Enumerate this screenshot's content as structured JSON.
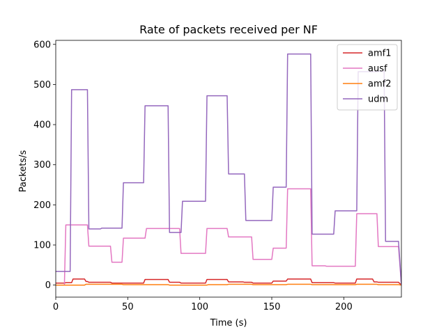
{
  "chart_data": {
    "type": "line",
    "title": "Rate of packets received per NF",
    "xlabel": "Time (s)",
    "ylabel": "Packets/s",
    "xlim": [
      0,
      240
    ],
    "ylim": [
      -30,
      610
    ],
    "xticks": [
      0,
      50,
      100,
      150,
      200
    ],
    "yticks": [
      0,
      100,
      200,
      300,
      400,
      500,
      600
    ],
    "grid": false,
    "legend_position": "top-right",
    "series": [
      {
        "name": "amf1",
        "color": "#d62728",
        "points": [
          [
            0,
            5
          ],
          [
            6,
            5
          ],
          [
            7,
            6
          ],
          [
            11,
            6
          ],
          [
            12,
            15
          ],
          [
            20,
            15
          ],
          [
            21,
            9
          ],
          [
            22,
            9
          ],
          [
            23,
            7
          ],
          [
            38,
            7
          ],
          [
            39,
            5
          ],
          [
            46,
            5
          ],
          [
            47,
            5
          ],
          [
            61,
            5
          ],
          [
            62,
            14
          ],
          [
            78,
            14
          ],
          [
            79,
            7
          ],
          [
            86,
            7
          ],
          [
            87,
            5
          ],
          [
            104,
            5
          ],
          [
            105,
            14
          ],
          [
            119,
            14
          ],
          [
            120,
            8
          ],
          [
            130,
            8
          ],
          [
            131,
            7
          ],
          [
            136,
            7
          ],
          [
            137,
            5
          ],
          [
            150,
            5
          ],
          [
            151,
            10
          ],
          [
            160,
            10
          ],
          [
            161,
            15
          ],
          [
            177,
            15
          ],
          [
            178,
            6
          ],
          [
            193,
            6
          ],
          [
            194,
            5
          ],
          [
            208,
            5
          ],
          [
            209,
            15
          ],
          [
            220,
            15
          ],
          [
            221,
            8
          ],
          [
            223,
            8
          ],
          [
            224,
            7
          ],
          [
            238,
            7
          ],
          [
            240,
            0
          ]
        ]
      },
      {
        "name": "ausf",
        "color": "#e377c2",
        "points": [
          [
            0,
            0
          ],
          [
            6,
            0
          ],
          [
            7,
            150
          ],
          [
            22,
            150
          ],
          [
            23,
            97
          ],
          [
            38,
            97
          ],
          [
            39,
            57
          ],
          [
            46,
            57
          ],
          [
            47,
            117
          ],
          [
            61,
            117
          ],
          [
            62,
            117
          ],
          [
            63,
            141
          ],
          [
            78,
            141
          ],
          [
            79,
            141
          ],
          [
            86,
            141
          ],
          [
            87,
            79
          ],
          [
            104,
            79
          ],
          [
            105,
            141
          ],
          [
            119,
            141
          ],
          [
            120,
            120
          ],
          [
            130,
            120
          ],
          [
            131,
            120
          ],
          [
            136,
            120
          ],
          [
            137,
            64
          ],
          [
            150,
            64
          ],
          [
            151,
            92
          ],
          [
            160,
            92
          ],
          [
            161,
            240
          ],
          [
            177,
            240
          ],
          [
            178,
            48
          ],
          [
            187,
            48
          ],
          [
            188,
            47
          ],
          [
            208,
            47
          ],
          [
            209,
            178
          ],
          [
            223,
            178
          ],
          [
            224,
            96
          ],
          [
            238,
            96
          ],
          [
            240,
            0
          ]
        ]
      },
      {
        "name": "amf2",
        "color": "#ff7f0e",
        "points": [
          [
            0,
            0
          ],
          [
            20,
            0
          ],
          [
            21,
            2
          ],
          [
            46,
            2
          ],
          [
            47,
            1
          ],
          [
            78,
            1
          ],
          [
            79,
            0
          ],
          [
            100,
            0
          ],
          [
            105,
            0
          ],
          [
            106,
            1
          ],
          [
            119,
            1
          ],
          [
            120,
            2
          ],
          [
            136,
            2
          ],
          [
            137,
            1
          ],
          [
            160,
            1
          ],
          [
            161,
            2
          ],
          [
            177,
            2
          ],
          [
            178,
            1
          ],
          [
            208,
            1
          ],
          [
            209,
            2
          ],
          [
            223,
            2
          ],
          [
            224,
            1
          ],
          [
            238,
            1
          ],
          [
            240,
            0
          ]
        ]
      },
      {
        "name": "udm",
        "color": "#9467bd",
        "points": [
          [
            0,
            34
          ],
          [
            10,
            34
          ],
          [
            11,
            487
          ],
          [
            22,
            487
          ],
          [
            23,
            140
          ],
          [
            30,
            140
          ],
          [
            31,
            140
          ],
          [
            32,
            142
          ],
          [
            46,
            142
          ],
          [
            47,
            255
          ],
          [
            61,
            255
          ],
          [
            62,
            447
          ],
          [
            78,
            447
          ],
          [
            79,
            131
          ],
          [
            86,
            131
          ],
          [
            87,
            131
          ],
          [
            88,
            209
          ],
          [
            104,
            209
          ],
          [
            105,
            472
          ],
          [
            119,
            472
          ],
          [
            120,
            277
          ],
          [
            130,
            277
          ],
          [
            131,
            277
          ],
          [
            132,
            161
          ],
          [
            150,
            161
          ],
          [
            151,
            244
          ],
          [
            160,
            244
          ],
          [
            161,
            576
          ],
          [
            177,
            576
          ],
          [
            178,
            127
          ],
          [
            193,
            127
          ],
          [
            194,
            185
          ],
          [
            208,
            185
          ],
          [
            209,
            185
          ],
          [
            210,
            532
          ],
          [
            223,
            532
          ],
          [
            224,
            533
          ],
          [
            228,
            533
          ],
          [
            229,
            109
          ],
          [
            238,
            109
          ],
          [
            240,
            0
          ]
        ]
      }
    ]
  }
}
